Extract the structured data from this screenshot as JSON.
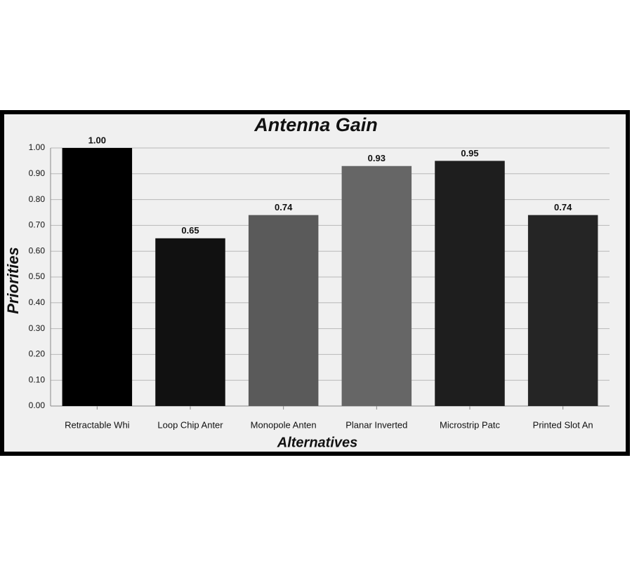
{
  "chart_data": {
    "type": "bar",
    "title": "Antenna Gain",
    "x_label": "Alternatives",
    "y_label": "Priorities",
    "categories": [
      "Retractable Whi",
      "Loop Chip Anter",
      "Monopole Anten",
      "Planar Inverted",
      "Microstrip Patc",
      "Printed Slot An"
    ],
    "values": [
      1.0,
      0.65,
      0.74,
      0.93,
      0.95,
      0.74
    ],
    "value_labels": [
      "1.00",
      "0.65",
      "0.74",
      "0.93",
      "0.95",
      "0.74"
    ],
    "colors": [
      "#000000",
      "#111111",
      "#5a5a5a",
      "#666666",
      "#1e1e1e",
      "#252525"
    ],
    "ylim": [
      0,
      1
    ],
    "yticks": [
      {
        "value": 0,
        "label": "0.00"
      },
      {
        "value": 0.1,
        "label": "0.10"
      },
      {
        "value": 0.2,
        "label": "0.20"
      },
      {
        "value": 0.3,
        "label": "0.30"
      },
      {
        "value": 0.4,
        "label": "0.40"
      },
      {
        "value": 0.5,
        "label": "0.50"
      },
      {
        "value": 0.6,
        "label": "0.60"
      },
      {
        "value": 0.7,
        "label": "0.70"
      },
      {
        "value": 0.8,
        "label": "0.80"
      },
      {
        "value": 0.9,
        "label": "0.90"
      },
      {
        "value": 1,
        "label": "1.00"
      }
    ],
    "grid": true
  }
}
